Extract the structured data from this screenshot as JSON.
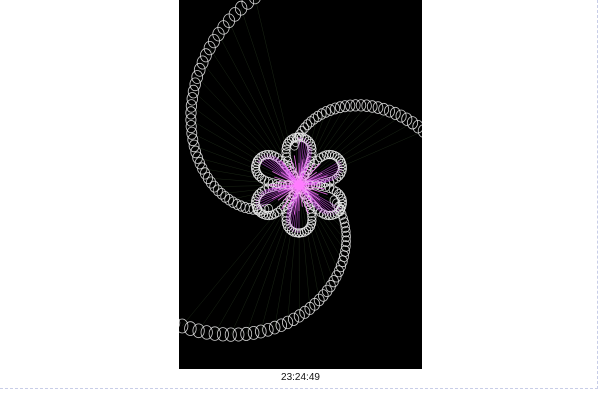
{
  "artwork": {
    "background_color": "#000000",
    "ring_color": "#e6e6e6",
    "petal_color": "#d24cf0",
    "thread_color": "#7fb86a",
    "core_color": "#ff7cff",
    "petal_count": 6,
    "spiral_arm_count": 3
  },
  "clock": {
    "time": "23:24:49"
  }
}
